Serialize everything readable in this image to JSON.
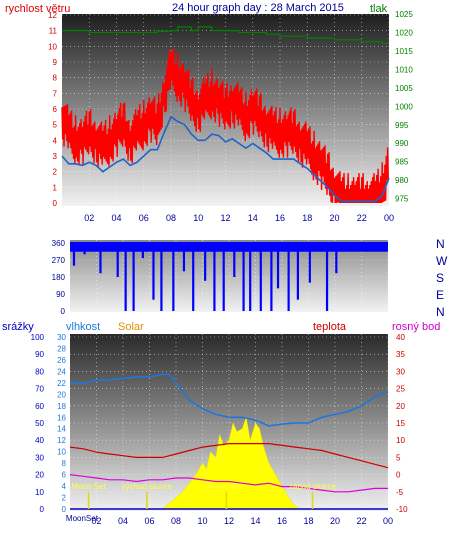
{
  "header": {
    "left_label": "rychlost větru",
    "title": "24 hour graph day : 28 March 2015",
    "right_label": "tlak"
  },
  "time_axis": {
    "ticks": [
      "02",
      "04",
      "06",
      "08",
      "10",
      "12",
      "14",
      "16",
      "18",
      "20",
      "22",
      "00"
    ]
  },
  "colors": {
    "wind_speed": "#ff0000",
    "wind_avg": "#1e64c8",
    "pressure": "#008000",
    "wind_dir": "#0000ff",
    "humidity": "#1e78dc",
    "solar": "#ffff00",
    "temperature": "#cc0000",
    "dew_point": "#dd00dd",
    "precip_axis": "#0000c0",
    "moon_marker": "#dddd00"
  },
  "chart_data": [
    {
      "type": "line",
      "name": "wind-pressure",
      "x_range_hours": [
        0,
        24
      ],
      "left_axis": {
        "label": "rychlost větru",
        "range": [
          0,
          12
        ],
        "ticks": [
          0,
          1,
          2,
          3,
          4,
          5,
          6,
          7,
          8,
          9,
          10,
          11,
          12
        ]
      },
      "right_axis": {
        "label": "tlak",
        "range": [
          973,
          1025
        ],
        "ticks": [
          975,
          980,
          985,
          990,
          995,
          1000,
          1005,
          1010,
          1015,
          1020,
          1025
        ]
      },
      "series": [
        {
          "name": "rychlost větru",
          "axis": "left",
          "x": [
            0,
            0.5,
            1,
            1.5,
            2,
            2.5,
            3,
            3.5,
            4,
            4.5,
            5,
            5.5,
            6,
            6.5,
            7,
            7.5,
            8,
            8.5,
            9,
            9.5,
            10,
            10.5,
            11,
            11.5,
            12,
            12.5,
            13,
            13.5,
            14,
            14.5,
            15,
            15.5,
            16,
            16.5,
            17,
            17.5,
            18,
            18.5,
            19,
            19.5,
            20,
            20.5,
            21,
            21.5,
            22,
            22.5,
            23,
            23.5,
            24
          ],
          "y": [
            5.5,
            4.5,
            4,
            4,
            4.5,
            4,
            3.5,
            4,
            4.5,
            5,
            4,
            4.5,
            5,
            5.5,
            5,
            7,
            8.5,
            8,
            7.5,
            6.5,
            6,
            6.5,
            7,
            6.5,
            6,
            6.5,
            6,
            5.5,
            6,
            5.5,
            5,
            4.5,
            4.5,
            4.5,
            4.5,
            4,
            3.5,
            3,
            2.5,
            1.8,
            1,
            0.3,
            0.3,
            0.3,
            0.3,
            0.3,
            0.3,
            1,
            2.5
          ]
        },
        {
          "name": "average wind",
          "axis": "left",
          "x": [
            0,
            0.5,
            1,
            1.5,
            2,
            2.5,
            3,
            3.5,
            4,
            4.5,
            5,
            5.5,
            6,
            6.5,
            7,
            7.5,
            8,
            8.5,
            9,
            9.5,
            10,
            10.5,
            11,
            11.5,
            12,
            12.5,
            13,
            13.5,
            14,
            14.5,
            15,
            15.5,
            16,
            16.5,
            17,
            17.5,
            18,
            18.5,
            19,
            19.5,
            20,
            20.5,
            21,
            21.5,
            22,
            22.5,
            23,
            23.5,
            24
          ],
          "y": [
            3,
            2.5,
            2.5,
            2.4,
            2.6,
            2.4,
            2,
            2.3,
            2.6,
            2.8,
            2.4,
            2.6,
            3,
            3.4,
            3.4,
            4.5,
            5.5,
            5.2,
            5,
            4.4,
            4,
            4,
            4.4,
            4.3,
            3.9,
            4.1,
            3.8,
            3.5,
            3.8,
            3.5,
            3.2,
            2.8,
            2.8,
            2.8,
            2.8,
            2.5,
            2.2,
            1.8,
            1.4,
            1,
            0.5,
            0.1,
            0.1,
            0.1,
            0.1,
            0.1,
            0.1,
            0.5,
            1.6
          ]
        },
        {
          "name": "tlak",
          "axis": "right",
          "x": [
            0,
            1,
            2,
            3,
            4,
            5,
            6,
            7,
            8,
            8.5,
            9,
            9.5,
            10,
            10.5,
            11,
            12,
            13,
            14,
            15,
            16,
            17,
            18,
            19,
            20,
            21,
            22,
            23,
            23.5,
            24
          ],
          "y": [
            1020.5,
            1020.5,
            1020,
            1020,
            1020,
            1020,
            1020,
            1020.3,
            1020.5,
            1021.5,
            1021.5,
            1020.5,
            1021.5,
            1021.5,
            1020.5,
            1020.5,
            1020,
            1020,
            1019.5,
            1019,
            1019,
            1018.5,
            1018.5,
            1018,
            1018,
            1017.5,
            1017.5,
            1017,
            1017
          ]
        }
      ]
    },
    {
      "type": "bar",
      "name": "wind-direction",
      "y_axis": {
        "range": [
          0,
          360
        ],
        "ticks": [
          0,
          90,
          180,
          270,
          360
        ]
      },
      "compass_labels": [
        "N",
        "W",
        "S",
        "E",
        "N"
      ],
      "series": [
        {
          "name": "wind direction",
          "baseline_deg": 335,
          "dips_hours": [
            0.3,
            1.1,
            2.3,
            3.6,
            4.2,
            4.8,
            5.5,
            6.3,
            6.9,
            7.8,
            8.6,
            9.3,
            10.2,
            10.9,
            11.6,
            12.4,
            13.1,
            13.6,
            14.4,
            15.2,
            15.7,
            16.5,
            17.2,
            18.1,
            19.4,
            20.1
          ],
          "dips_deg": [
            240,
            300,
            200,
            180,
            0,
            0,
            280,
            60,
            0,
            0,
            210,
            0,
            160,
            0,
            0,
            180,
            0,
            0,
            0,
            0,
            120,
            0,
            60,
            150,
            0,
            200
          ]
        }
      ]
    },
    {
      "type": "line",
      "name": "humidity-solar-temperature",
      "labels": {
        "precip": "srážky",
        "humidity": "vlhkost",
        "solar": "Solar",
        "temperature": "teplota",
        "dew_point": "rosný bod"
      },
      "precip_axis": {
        "range": [
          0,
          100
        ],
        "ticks": [
          0,
          10,
          20,
          30,
          40,
          50,
          60,
          70,
          80,
          90,
          100
        ]
      },
      "humidity_axis": {
        "range": [
          0,
          30
        ],
        "ticks": [
          0,
          2,
          4,
          6,
          8,
          10,
          12,
          14,
          16,
          18,
          20,
          22,
          24,
          26,
          28,
          30
        ]
      },
      "temperature_axis": {
        "range": [
          -10,
          40
        ],
        "ticks": [
          -10,
          -5,
          0,
          5,
          10,
          15,
          20,
          25,
          30,
          35,
          40
        ]
      },
      "series": [
        {
          "name": "vlhkost",
          "x": [
            0,
            1,
            2,
            3,
            4,
            5,
            6,
            7,
            7.5,
            8,
            9,
            10,
            11,
            12,
            13,
            14,
            15,
            16,
            17,
            18,
            19,
            20,
            21,
            22,
            23,
            24
          ],
          "y": [
            22,
            22,
            22.5,
            22.5,
            22.8,
            23,
            23,
            23.5,
            23.5,
            22,
            19,
            17.5,
            16.5,
            16,
            16,
            15.5,
            14.5,
            14.8,
            15,
            15,
            16,
            16.5,
            17,
            18,
            19.5,
            20.5
          ]
        },
        {
          "name": "teplota",
          "x": [
            0,
            1,
            2,
            3,
            4,
            5,
            6,
            7,
            8,
            9,
            10,
            11,
            12,
            13,
            14,
            15,
            16,
            17,
            18,
            19,
            20,
            21,
            22,
            23,
            24
          ],
          "y": [
            8,
            7.5,
            6.5,
            6,
            5.5,
            5,
            5,
            5,
            6,
            7,
            8,
            8.5,
            9,
            9,
            9,
            9,
            8.5,
            8,
            7.5,
            7,
            6,
            5,
            4,
            3,
            2
          ]
        },
        {
          "name": "rosný bod",
          "x": [
            0,
            1,
            2,
            3,
            4,
            5,
            6,
            7,
            8,
            9,
            10,
            11,
            12,
            13,
            14,
            15,
            16,
            17,
            18,
            19,
            20,
            21,
            22,
            23,
            24
          ],
          "y": [
            0,
            -0.5,
            -1,
            -1.5,
            -1.5,
            -2,
            -1.5,
            -1.5,
            -1,
            -1,
            -1.5,
            -2,
            -2,
            -2.5,
            -3,
            -2.5,
            -3.5,
            -3.5,
            -4,
            -4.5,
            -5,
            -5,
            -4.5,
            -4,
            -4
          ]
        },
        {
          "name": "Solar",
          "x": [
            6,
            7,
            7.5,
            8,
            8.5,
            9,
            9.5,
            10,
            10.3,
            10.6,
            11,
            11.3,
            11.6,
            12,
            12.3,
            12.6,
            13,
            13.3,
            13.6,
            14,
            14.3,
            14.6,
            15,
            15.5,
            16,
            16.5,
            17,
            17.5
          ],
          "y": [
            0,
            0.1,
            1,
            2,
            3,
            4.5,
            6,
            8,
            7,
            10,
            9,
            13,
            11,
            12,
            15,
            13.5,
            14,
            16,
            12,
            15,
            14,
            11,
            8,
            6,
            4,
            2,
            0.5,
            0
          ]
        },
        {
          "name": "srážky",
          "x": [
            0,
            24
          ],
          "y": [
            0,
            0
          ]
        }
      ],
      "annotations": [
        {
          "text": "Moon Set",
          "hour": 1.4
        },
        {
          "text": "východ slunce",
          "hour": 5.8
        },
        {
          "text": "Moon Rise",
          "hour": 11.8
        },
        {
          "text": "západ slunce",
          "hour": 18.3
        }
      ],
      "time_axis_labels": [
        "02",
        "04",
        "06",
        "08",
        "10",
        "12",
        "14",
        "16",
        "18",
        "20",
        "22",
        "00"
      ],
      "overlapping_axis_label": "MoonSet"
    }
  ]
}
